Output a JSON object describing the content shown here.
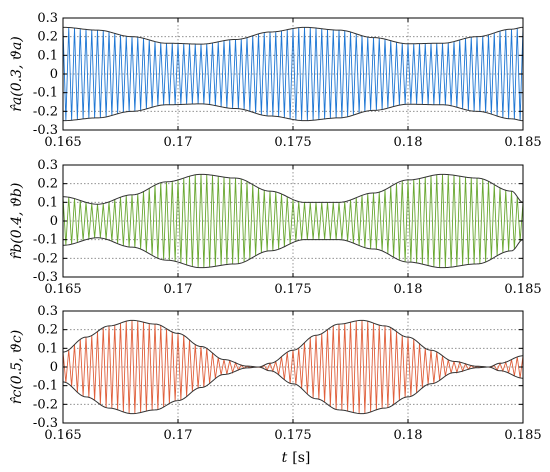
{
  "chart_data": [
    {
      "type": "line",
      "ylabel": "r̂a(0.3, ϑa)",
      "xlim": [
        0.165,
        0.185
      ],
      "ylim": [
        -0.3,
        0.3
      ],
      "x_ticks": [
        "0.165",
        "0.17",
        "0.175",
        "0.18",
        "0.185"
      ],
      "y_ticks": [
        "0.3",
        "0.2",
        "0.1",
        "0",
        "-0.1",
        "-0.2",
        "-0.3"
      ],
      "grid": true,
      "series": [
        {
          "color": "#1f77d4",
          "carrier_period_s": 0.00025,
          "envelope": {
            "x": [
              0.165,
              0.1665,
              0.168,
              0.1695,
              0.171,
              0.1725,
              0.174,
              0.1755,
              0.177,
              0.1785,
              0.18,
              0.1815,
              0.183,
              0.1845,
              0.185
            ],
            "y": [
              0.25,
              0.235,
              0.2,
              0.165,
              0.16,
              0.185,
              0.225,
              0.25,
              0.235,
              0.195,
              0.162,
              0.165,
              0.2,
              0.24,
              0.25
            ]
          }
        }
      ]
    },
    {
      "type": "line",
      "ylabel": "r̂b(0.4, ϑb)",
      "xlim": [
        0.165,
        0.185
      ],
      "ylim": [
        -0.3,
        0.3
      ],
      "x_ticks": [
        "0.165",
        "0.17",
        "0.175",
        "0.18",
        "0.185"
      ],
      "y_ticks": [
        "0.3",
        "0.2",
        "0.1",
        "0",
        "-0.1",
        "-0.2",
        "-0.3"
      ],
      "grid": true,
      "series": [
        {
          "color": "#6aa832",
          "carrier_period_s": 0.00025,
          "envelope": {
            "x": [
              0.165,
              0.1665,
              0.168,
              0.1695,
              0.171,
              0.1725,
              0.174,
              0.1755,
              0.177,
              0.1785,
              0.18,
              0.1815,
              0.183,
              0.1845,
              0.185
            ],
            "y": [
              0.13,
              0.09,
              0.14,
              0.21,
              0.25,
              0.23,
              0.16,
              0.1,
              0.1,
              0.15,
              0.22,
              0.25,
              0.23,
              0.16,
              0.1
            ]
          }
        }
      ]
    },
    {
      "type": "line",
      "ylabel": "r̂c(0.5, ϑc)",
      "xlim": [
        0.165,
        0.185
      ],
      "ylim": [
        -0.3,
        0.3
      ],
      "x_ticks": [
        "0.165",
        "0.17",
        "0.175",
        "0.18",
        "0.185"
      ],
      "y_ticks": [
        "0.3",
        "0.2",
        "0.1",
        "0",
        "-0.1",
        "-0.2",
        "-0.3"
      ],
      "grid": true,
      "series": [
        {
          "color": "#e0603c",
          "carrier_period_s": 0.00025,
          "envelope": {
            "x": [
              0.165,
              0.166,
              0.167,
              0.168,
              0.169,
              0.17,
              0.171,
              0.172,
              0.173,
              0.1735,
              0.174,
              0.175,
              0.176,
              0.177,
              0.178,
              0.179,
              0.18,
              0.181,
              0.182,
              0.183,
              0.1835,
              0.184,
              0.185
            ],
            "y": [
              0.08,
              0.16,
              0.22,
              0.25,
              0.23,
              0.18,
              0.11,
              0.04,
              0.005,
              0.0,
              0.02,
              0.09,
              0.17,
              0.23,
              0.25,
              0.22,
              0.16,
              0.09,
              0.03,
              0.004,
              0.0,
              0.02,
              0.06
            ]
          }
        }
      ]
    }
  ],
  "xlabel": {
    "symbol": "t",
    "unit": "[s]"
  }
}
